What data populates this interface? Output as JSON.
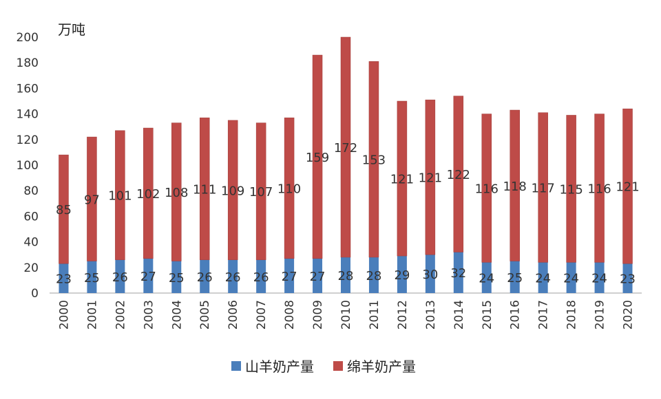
{
  "chart_data": {
    "type": "bar",
    "stacked": true,
    "unit_label": "万吨",
    "categories": [
      "2000",
      "2001",
      "2002",
      "2003",
      "2004",
      "2005",
      "2006",
      "2007",
      "2008",
      "2009",
      "2010",
      "2011",
      "2012",
      "2013",
      "2014",
      "2015",
      "2016",
      "2017",
      "2018",
      "2019",
      "2020"
    ],
    "series": [
      {
        "name": "山羊奶产量",
        "color": "#4A7EBB",
        "values": [
          23,
          25,
          26,
          27,
          25,
          26,
          26,
          26,
          27,
          27,
          28,
          28,
          29,
          30,
          32,
          24,
          25,
          24,
          24,
          24,
          23
        ]
      },
      {
        "name": "绵羊奶产量",
        "color": "#BE4B48",
        "values": [
          85,
          97,
          101,
          102,
          108,
          111,
          109,
          107,
          110,
          159,
          172,
          153,
          121,
          121,
          122,
          116,
          118,
          117,
          115,
          116,
          121
        ]
      }
    ],
    "ylim": [
      0,
      200
    ],
    "yticks": [
      "0",
      "20",
      "40",
      "60",
      "80",
      "100",
      "120",
      "140",
      "160",
      "180",
      "200"
    ],
    "grid": false,
    "legend_position": "bottom"
  }
}
